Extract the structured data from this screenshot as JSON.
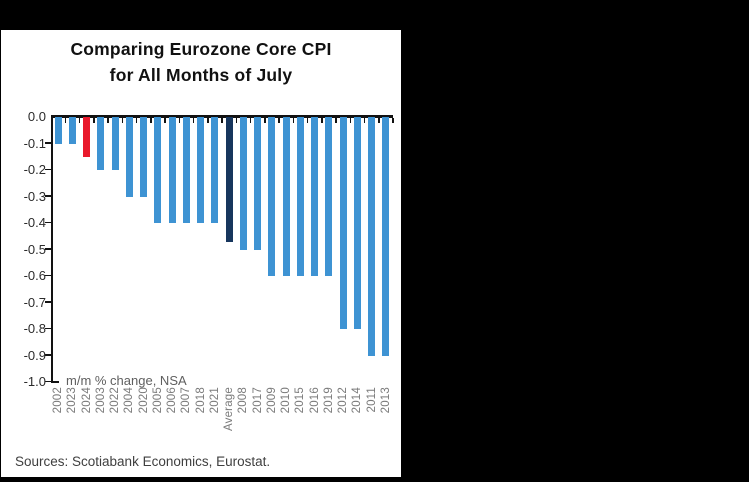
{
  "title": {
    "line1": "Comparing Eurozone Core CPI",
    "line2": "for All Months of July"
  },
  "axis_note": "m/m % change, NSA",
  "source": "Sources: Scotiabank Economics, Eurostat.",
  "colors": {
    "background_frame": "#000000",
    "panel": "#ffffff",
    "bar_default": "#3e93d3",
    "bar_highlight_2024": "#e9192c",
    "bar_average": "#17365d",
    "axis": "#121212",
    "y_label_text": "#2b2b2b",
    "x_label_text": "#7b7b7b"
  },
  "chart_data": {
    "type": "bar",
    "title": "Comparing Eurozone Core CPI for All Months of July",
    "ylabel": "m/m % change, NSA",
    "xlabel": "",
    "ylim": [
      -1.0,
      0.0
    ],
    "ytick_step": 0.1,
    "yticks": [
      "0.0",
      "-0.1",
      "-0.2",
      "-0.3",
      "-0.4",
      "-0.5",
      "-0.6",
      "-0.7",
      "-0.8",
      "-0.9",
      "-1.0"
    ],
    "grid": false,
    "legend": "none",
    "orientation": "vertical",
    "categories": [
      "2002",
      "2023",
      "2024",
      "2003",
      "2022",
      "2004",
      "2020",
      "2005",
      "2006",
      "2007",
      "2018",
      "2021",
      "Average",
      "2008",
      "2017",
      "2009",
      "2010",
      "2015",
      "2016",
      "2019",
      "2012",
      "2014",
      "2011",
      "2013"
    ],
    "values": [
      -0.1,
      -0.1,
      -0.15,
      -0.2,
      -0.2,
      -0.3,
      -0.3,
      -0.4,
      -0.4,
      -0.4,
      -0.4,
      -0.4,
      -0.47,
      -0.5,
      -0.5,
      -0.6,
      -0.6,
      -0.6,
      -0.6,
      -0.6,
      -0.8,
      -0.8,
      -0.9,
      -0.9
    ],
    "bar_colors": {
      "default": "#3e93d3",
      "2024": "#e9192c",
      "Average": "#17365d"
    }
  }
}
